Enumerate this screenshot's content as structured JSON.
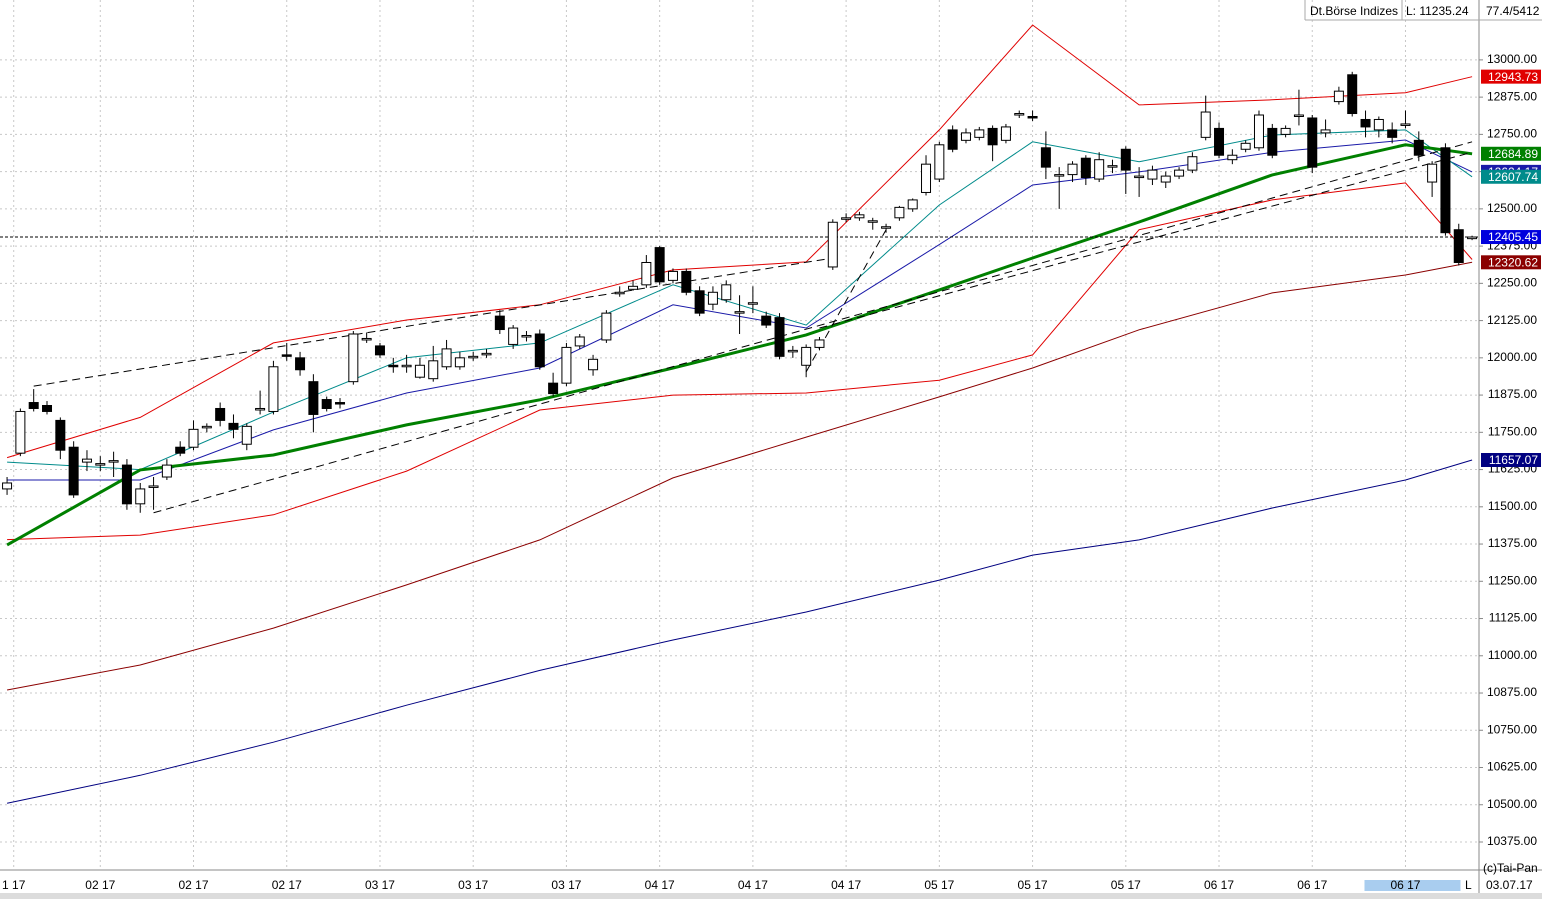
{
  "chart_data": {
    "type": "candlestick",
    "xlim": [
      -0.53,
      110.52
    ],
    "ylim": [
      10281,
      13201
    ],
    "grid": true,
    "xticks": [
      {
        "value": 0.5,
        "label": "1 17"
      },
      {
        "value": 7,
        "label": "02 17"
      },
      {
        "value": 14,
        "label": "02 17"
      },
      {
        "value": 21,
        "label": "02 17"
      },
      {
        "value": 28,
        "label": "03 17"
      },
      {
        "value": 35,
        "label": "03 17"
      },
      {
        "value": 42,
        "label": "03 17"
      },
      {
        "value": 49,
        "label": "04 17"
      },
      {
        "value": 56,
        "label": "04 17"
      },
      {
        "value": 63,
        "label": "04 17"
      },
      {
        "value": 70,
        "label": "05 17"
      },
      {
        "value": 77,
        "label": "05 17"
      },
      {
        "value": 84,
        "label": "05 17"
      },
      {
        "value": 91,
        "label": "06 17"
      },
      {
        "value": 98,
        "label": "06 17"
      },
      {
        "value": 105,
        "label": "06 17"
      }
    ],
    "highlight_xtick": 15,
    "yticks": [
      {
        "value": 10375,
        "label": "10375.00"
      },
      {
        "value": 10500,
        "label": "10500.00"
      },
      {
        "value": 10625,
        "label": "10625.00"
      },
      {
        "value": 10750,
        "label": "10750.00"
      },
      {
        "value": 10875,
        "label": "10875.00"
      },
      {
        "value": 11000,
        "label": "11000.00"
      },
      {
        "value": 11125,
        "label": "11125.00"
      },
      {
        "value": 11250,
        "label": "11250.00"
      },
      {
        "value": 11375,
        "label": "11375.00"
      },
      {
        "value": 11500,
        "label": "11500.00"
      },
      {
        "value": 11625,
        "label": "11625.00"
      },
      {
        "value": 11750,
        "label": "11750.00"
      },
      {
        "value": 11875,
        "label": "11875.00"
      },
      {
        "value": 12000,
        "label": "12000.00"
      },
      {
        "value": 12125,
        "label": "12125.00"
      },
      {
        "value": 12250,
        "label": "12250.00"
      },
      {
        "value": 12375,
        "label": "12375.00"
      },
      {
        "value": 12500,
        "label": "12500.00"
      },
      {
        "value": 12625,
        "label": "12625.00"
      },
      {
        "value": 12750,
        "label": "12750.00"
      },
      {
        "value": 12875,
        "label": "12875.00"
      },
      {
        "value": 13000,
        "label": "13000.00"
      }
    ],
    "ohlc": [
      [
        11560,
        11600,
        11540,
        11580
      ],
      [
        11680,
        11830,
        11670,
        11820
      ],
      [
        11850,
        11895,
        11820,
        11830
      ],
      [
        11840,
        11855,
        11810,
        11820
      ],
      [
        11790,
        11800,
        11660,
        11690
      ],
      [
        11700,
        11720,
        11530,
        11540
      ],
      [
        11650,
        11690,
        11620,
        11660
      ],
      [
        11640,
        11670,
        11620,
        11645
      ],
      [
        11650,
        11685,
        11600,
        11655
      ],
      [
        11640,
        11660,
        11490,
        11510
      ],
      [
        11510,
        11580,
        11480,
        11560
      ],
      [
        11565,
        11600,
        11490,
        11570
      ],
      [
        11600,
        11660,
        11590,
        11640
      ],
      [
        11700,
        11720,
        11670,
        11680
      ],
      [
        11700,
        11790,
        11690,
        11760
      ],
      [
        11765,
        11780,
        11750,
        11770
      ],
      [
        11830,
        11850,
        11770,
        11790
      ],
      [
        11780,
        11810,
        11730,
        11760
      ],
      [
        11710,
        11780,
        11690,
        11770
      ],
      [
        11825,
        11890,
        11810,
        11830
      ],
      [
        11820,
        11990,
        11810,
        11970
      ],
      [
        12010,
        12050,
        11990,
        12005
      ],
      [
        12000,
        12020,
        11940,
        11960
      ],
      [
        11920,
        11945,
        11750,
        11810
      ],
      [
        11860,
        11870,
        11820,
        11830
      ],
      [
        11850,
        11865,
        11830,
        11845
      ],
      [
        11920,
        12090,
        11910,
        12080
      ],
      [
        12060,
        12085,
        12050,
        12065
      ],
      [
        12040,
        12050,
        12000,
        12010
      ],
      [
        11975,
        12000,
        11950,
        11970
      ],
      [
        11970,
        12010,
        11950,
        11975
      ],
      [
        11935,
        12000,
        11930,
        11975
      ],
      [
        11930,
        12040,
        11920,
        11990
      ],
      [
        11970,
        12060,
        11960,
        12030
      ],
      [
        11970,
        12020,
        11960,
        12000
      ],
      [
        12000,
        12020,
        11990,
        12005
      ],
      [
        12010,
        12030,
        12000,
        12015
      ],
      [
        12140,
        12160,
        12080,
        12095
      ],
      [
        12045,
        12110,
        12030,
        12100
      ],
      [
        12070,
        12090,
        12055,
        12075
      ],
      [
        12080,
        12095,
        11960,
        11970
      ],
      [
        11915,
        11950,
        11870,
        11880
      ],
      [
        11915,
        12050,
        11905,
        12035
      ],
      [
        12040,
        12080,
        12030,
        12070
      ],
      [
        11960,
        12010,
        11940,
        11995
      ],
      [
        12060,
        12160,
        12050,
        12150
      ],
      [
        12215,
        12240,
        12205,
        12220
      ],
      [
        12230,
        12260,
        12225,
        12240
      ],
      [
        12245,
        12345,
        12235,
        12320
      ],
      [
        12370,
        12375,
        12245,
        12255
      ],
      [
        12260,
        12300,
        12250,
        12290
      ],
      [
        12290,
        12300,
        12210,
        12220
      ],
      [
        12225,
        12240,
        12140,
        12150
      ],
      [
        12180,
        12240,
        12160,
        12220
      ],
      [
        12195,
        12260,
        12185,
        12245
      ],
      [
        12150,
        12210,
        12080,
        12155
      ],
      [
        12180,
        12240,
        12150,
        12185
      ],
      [
        12140,
        12155,
        12100,
        12110
      ],
      [
        12135,
        12150,
        11995,
        12005
      ],
      [
        12020,
        12040,
        12000,
        12025
      ],
      [
        11975,
        12045,
        11935,
        12035
      ],
      [
        12035,
        12070,
        12025,
        12060
      ],
      [
        12305,
        12465,
        12295,
        12455
      ],
      [
        12465,
        12485,
        12455,
        12470
      ],
      [
        12470,
        12490,
        12460,
        12480
      ],
      [
        12455,
        12470,
        12430,
        12460
      ],
      [
        12435,
        12450,
        12420,
        12440
      ],
      [
        12470,
        12510,
        12460,
        12505
      ],
      [
        12500,
        12535,
        12490,
        12530
      ],
      [
        12555,
        12680,
        12545,
        12650
      ],
      [
        12600,
        12725,
        12590,
        12715
      ],
      [
        12765,
        12780,
        12690,
        12700
      ],
      [
        12730,
        12770,
        12720,
        12755
      ],
      [
        12740,
        12775,
        12730,
        12765
      ],
      [
        12770,
        12780,
        12660,
        12715
      ],
      [
        12730,
        12785,
        12720,
        12775
      ],
      [
        12815,
        12830,
        12805,
        12820
      ],
      [
        12810,
        12830,
        12795,
        12805
      ],
      [
        12705,
        12760,
        12600,
        12640
      ],
      [
        12610,
        12640,
        12500,
        12615
      ],
      [
        12615,
        12660,
        12590,
        12650
      ],
      [
        12670,
        12680,
        12580,
        12605
      ],
      [
        12600,
        12690,
        12590,
        12665
      ],
      [
        12640,
        12665,
        12620,
        12645
      ],
      [
        12700,
        12710,
        12550,
        12630
      ],
      [
        12605,
        12640,
        12540,
        12610
      ],
      [
        12600,
        12645,
        12580,
        12630
      ],
      [
        12590,
        12625,
        12570,
        12610
      ],
      [
        12610,
        12640,
        12600,
        12630
      ],
      [
        12630,
        12690,
        12620,
        12675
      ],
      [
        12740,
        12880,
        12730,
        12825
      ],
      [
        12770,
        12790,
        12670,
        12680
      ],
      [
        12665,
        12700,
        12650,
        12680
      ],
      [
        12700,
        12730,
        12690,
        12720
      ],
      [
        12705,
        12830,
        12695,
        12815
      ],
      [
        12770,
        12785,
        12670,
        12680
      ],
      [
        12750,
        12780,
        12740,
        12770
      ],
      [
        12810,
        12900,
        12780,
        12815
      ],
      [
        12805,
        12815,
        12620,
        12640
      ],
      [
        12755,
        12800,
        12740,
        12765
      ],
      [
        12860,
        12910,
        12850,
        12895
      ],
      [
        12950,
        12960,
        12810,
        12820
      ],
      [
        12800,
        12830,
        12740,
        12775
      ],
      [
        12765,
        12810,
        12740,
        12800
      ],
      [
        12765,
        12790,
        12720,
        12740
      ],
      [
        12780,
        12830,
        12770,
        12785
      ],
      [
        12730,
        12760,
        12660,
        12680
      ],
      [
        12590,
        12660,
        12540,
        12650
      ],
      [
        12705,
        12720,
        12410,
        12420
      ],
      [
        12430,
        12450,
        12310,
        12320
      ],
      [
        12400,
        12410,
        12395,
        12405.45
      ]
    ],
    "overlay_x": [
      0,
      10,
      20,
      30,
      40,
      50,
      60,
      70,
      77,
      85,
      95,
      105,
      110
    ],
    "overlays": [
      {
        "color": "#e00000",
        "width": 1,
        "label_box": true,
        "values": [
          11665,
          11800,
          12050,
          12127,
          12178,
          12295,
          12322,
          12765,
          13117,
          12849,
          12866,
          12890,
          12943.73
        ]
      },
      {
        "color": "#e00000",
        "width": 1,
        "label_box": false,
        "values": [
          11390,
          11405,
          11473,
          11620,
          11825,
          11875,
          11882,
          11925,
          12010,
          12430,
          12530,
          12587,
          12330
        ]
      },
      {
        "color": "#8b0000",
        "width": 1,
        "label_box": true,
        "values": [
          10885,
          10969,
          11093,
          11238,
          11389,
          11597,
          11734,
          11869,
          11966,
          12094,
          12218,
          12278,
          12320.62
        ]
      },
      {
        "color": "#000080",
        "width": 1,
        "label_box": true,
        "values": [
          10505,
          10599,
          10710,
          10834,
          10951,
          11053,
          11147,
          11254,
          11338,
          11389,
          11496,
          11590,
          11657.07
        ]
      },
      {
        "color": "#1a1aa8",
        "width": 1,
        "label_box": true,
        "values": [
          11590,
          11590,
          11758,
          11882,
          11966,
          12178,
          12100,
          12380,
          12580,
          12624,
          12690,
          12731,
          12624.17
        ]
      },
      {
        "color": "#008b8b",
        "width": 1,
        "label_box": true,
        "values": [
          11650,
          11625,
          11818,
          12000,
          12050,
          12245,
          12110,
          12513,
          12725,
          12658,
          12748,
          12765,
          12607.74
        ]
      },
      {
        "color": "#008000",
        "width": 3,
        "label_box": true,
        "values": [
          11372,
          11624,
          11674,
          11775,
          11859,
          11966,
          12077,
          12228,
          12335,
          12456,
          12614,
          12715,
          12684.89
        ]
      }
    ],
    "trendlines": [
      {
        "x": [
          2,
          62
        ],
        "values": [
          11905,
          12335
        ]
      },
      {
        "x": [
          11,
          110
        ],
        "values": [
          11480,
          12725
        ]
      },
      {
        "x": [
          60,
          66
        ],
        "values": [
          11953,
          12430
        ]
      },
      {
        "x": [
          61,
          110
        ],
        "values": [
          12100,
          12690
        ]
      }
    ],
    "price_line": {
      "value": 12405.45,
      "color": "#0000dd"
    },
    "info": [
      "Dt.Börse Indizes",
      "L: 11235.24",
      "77.4/5412"
    ],
    "copyright": "(c)Tai-Pan",
    "marker": "L",
    "date": "03.07.17"
  }
}
